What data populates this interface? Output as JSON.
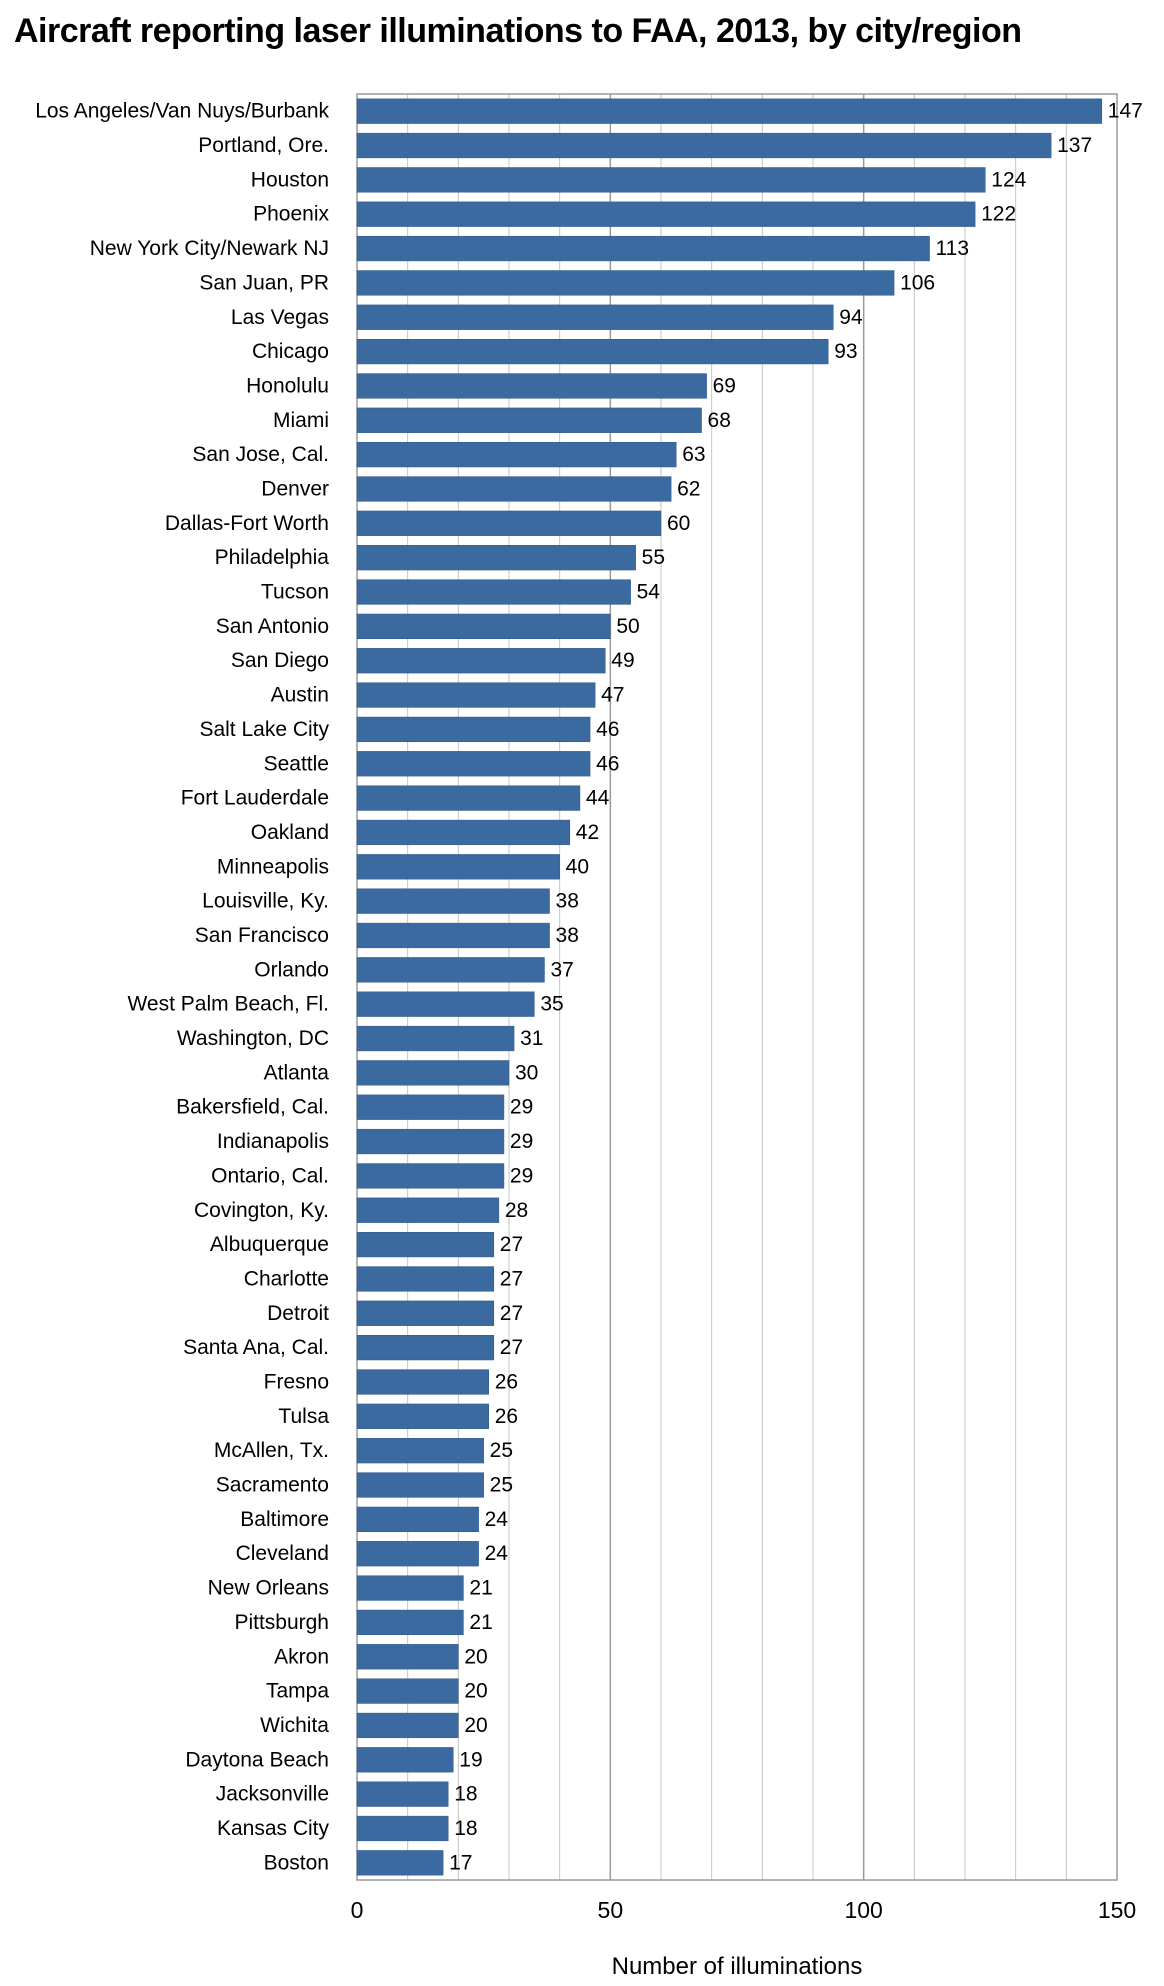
{
  "chart_data": {
    "type": "bar",
    "orientation": "horizontal",
    "title": "Aircraft reporting laser illuminations to FAA, 2013, by city/region",
    "xlabel": "Number of illuminations",
    "ylabel": "",
    "xlim": [
      0,
      150
    ],
    "xticks": [
      0,
      50,
      100,
      150
    ],
    "grid": "vertical",
    "bar_color": "#3b6aa0",
    "categories": [
      "Los Angeles/Van Nuys/Burbank",
      "Portland, Ore.",
      "Houston",
      "Phoenix",
      "New York City/Newark NJ",
      "San Juan, PR",
      "Las Vegas",
      "Chicago",
      "Honolulu",
      "Miami",
      "San Jose, Cal.",
      "Denver",
      "Dallas-Fort Worth",
      "Philadelphia",
      "Tucson",
      "San Antonio",
      "San Diego",
      "Austin",
      "Salt Lake City",
      "Seattle",
      "Fort Lauderdale",
      "Oakland",
      "Minneapolis",
      "Louisville, Ky.",
      "San Francisco",
      "Orlando",
      "West Palm Beach, Fl.",
      "Washington, DC",
      "Atlanta",
      "Bakersfield, Cal.",
      "Indianapolis",
      "Ontario, Cal.",
      "Covington, Ky.",
      "Albuquerque",
      "Charlotte",
      "Detroit",
      "Santa Ana, Cal.",
      "Fresno",
      "Tulsa",
      "McAllen, Tx.",
      "Sacramento",
      "Baltimore",
      "Cleveland",
      "New Orleans",
      "Pittsburgh",
      "Akron",
      "Tampa",
      "Wichita",
      "Daytona Beach",
      "Jacksonville",
      "Kansas City",
      "Boston"
    ],
    "values": [
      147,
      137,
      124,
      122,
      113,
      106,
      94,
      93,
      69,
      68,
      63,
      62,
      60,
      55,
      54,
      50,
      49,
      47,
      46,
      46,
      44,
      42,
      40,
      38,
      38,
      37,
      35,
      31,
      30,
      29,
      29,
      29,
      28,
      27,
      27,
      27,
      27,
      26,
      26,
      25,
      25,
      24,
      24,
      21,
      21,
      20,
      20,
      20,
      19,
      18,
      18,
      17
    ]
  }
}
